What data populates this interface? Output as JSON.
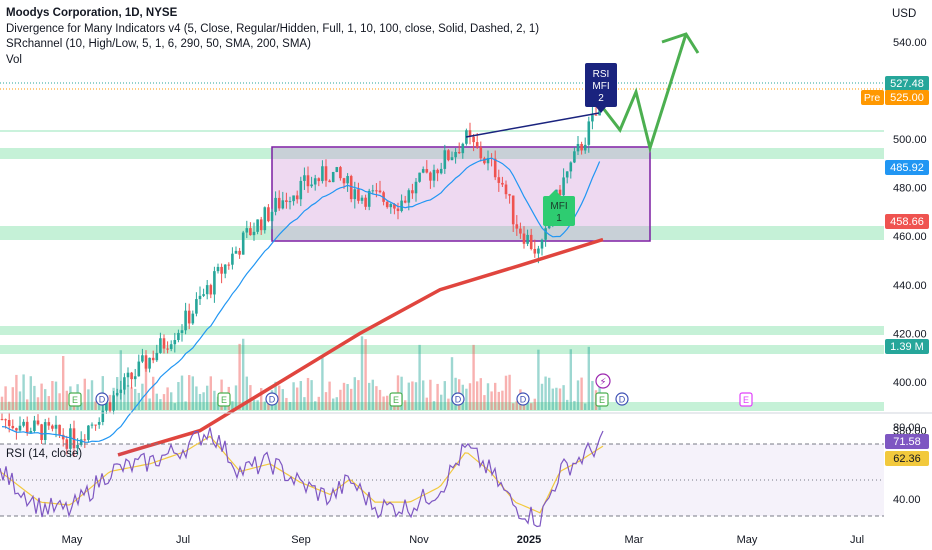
{
  "legend": {
    "title": "Moodys Corporation, 1D, NYSE",
    "line1": "Divergence for Many Indicators v4 (5, Close, Regular/Hidden, Full, 1, 10, 100, close, Solid, Dashed, 2, 1)",
    "line2": "SRchannel (10, High/Low, 5, 1, 6, 290, 50, SMA, 200, SMA)",
    "line3": "Vol"
  },
  "currency": "USD",
  "rsi_legend": "RSI (14, close)",
  "badges": {
    "price_last": "527.48",
    "pre_tag": "Pre",
    "pre_value": "525.00",
    "sma50": "485.92",
    "sma200": "458.66",
    "volume": "1.39 M",
    "rsi": "71.58",
    "rsi_ma": "62.36"
  },
  "annotations": {
    "bear": [
      "RSI",
      "MFI",
      "2"
    ],
    "bull": [
      "MFI",
      "1"
    ],
    "events": [
      "E",
      "D",
      "E",
      "D",
      "E",
      "D",
      "E",
      "D",
      "E"
    ]
  },
  "colors": {
    "up": "#26a69a",
    "down": "#ef5350",
    "sma50": "#2196f3",
    "sma200": "#e0453e",
    "range_box": "#9c27b0",
    "forecast": "#4caf50",
    "sr_zone": "#2ecc71",
    "rsi": "#7e57c2",
    "rsi_ma": "#f2c93d"
  },
  "chart_data": [
    {
      "type": "line",
      "title": "Moodys Corporation, 1D, NYSE",
      "x_labels": [
        "May",
        "Jul",
        "Sep",
        "Nov",
        "2025",
        "Mar",
        "May",
        "Jul"
      ],
      "y_ticks": [
        380,
        400,
        420,
        440,
        460,
        480,
        500,
        540
      ],
      "ylim": [
        370,
        555
      ],
      "series": [
        {
          "name": "Price (close)",
          "x": [
            "Apr",
            "May",
            "Jun",
            "Jul",
            "Aug",
            "Aug",
            "Sep",
            "Oct",
            "Nov",
            "Dec",
            "Dec",
            "Jan",
            "Jan",
            "Feb"
          ],
          "values": [
            385,
            378,
            392,
            432,
            470,
            488,
            485,
            472,
            500,
            478,
            462,
            482,
            490,
            510
          ]
        }
      ],
      "levels": {
        "last": 527.48,
        "pre": 525.0,
        "sma50": 485.92,
        "sma200": 458.66
      },
      "range_box": [
        450,
        495
      ],
      "grid": false
    },
    {
      "type": "line",
      "title": "RSI (14, close)",
      "y_ticks": [
        40,
        60,
        80
      ],
      "series": [
        {
          "name": "RSI",
          "last": 71.58
        },
        {
          "name": "RSI-based MA",
          "last": 62.36
        }
      ],
      "bands": [
        30,
        70
      ]
    }
  ]
}
